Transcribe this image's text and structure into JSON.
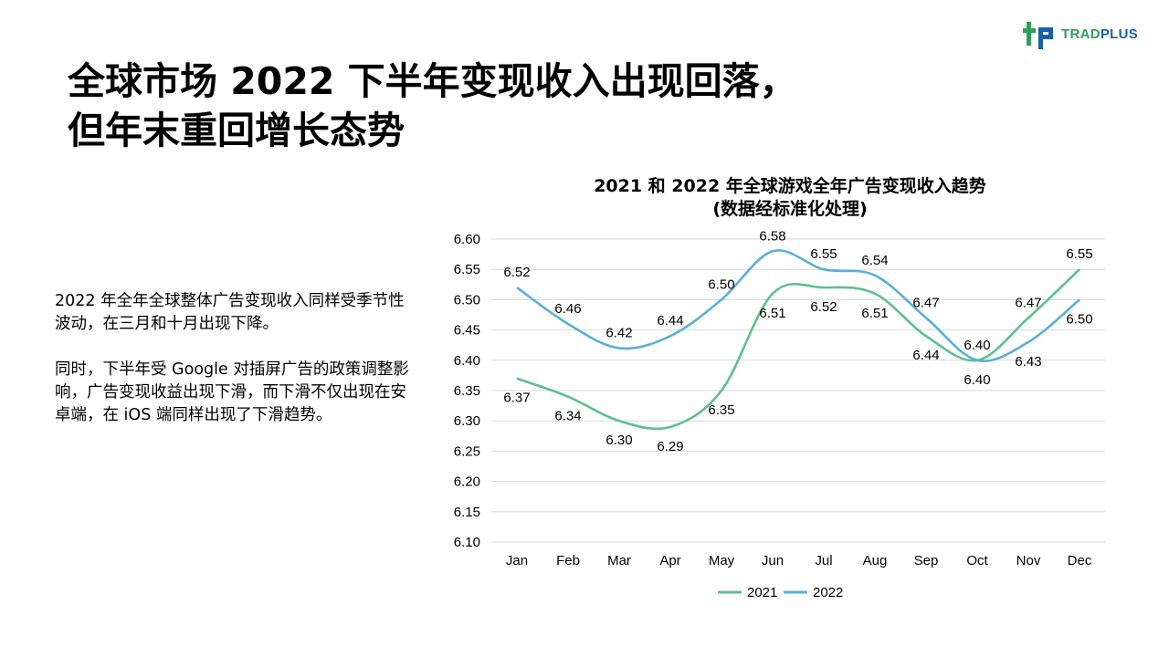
{
  "logo": {
    "text_part1": "TRAD",
    "text_part2": "PLUS"
  },
  "title": {
    "line1": "全球市场 2022 下半年变现收入出现回落，",
    "line2": "但年末重回增长态势"
  },
  "body": {
    "paragraph1": "2022 年全年全球整体广告变现收入同样受季节性波动，在三月和十月出现下降。",
    "paragraph2": "同时，下半年受 Google 对插屏广告的政策调整影响，广告变现收益出现下滑，而下滑不仅出现在安卓端，在 iOS 端同样出现了下滑趋势。"
  },
  "chart_data": {
    "type": "line",
    "title": "2021 和 2022 年全球游戏全年广告变现收入趋势",
    "subtitle": "(数据经标准化处理)",
    "categories": [
      "Jan",
      "Feb",
      "Mar",
      "Apr",
      "May",
      "Jun",
      "Jul",
      "Aug",
      "Sep",
      "Oct",
      "Nov",
      "Dec"
    ],
    "series": [
      {
        "name": "2021",
        "color": "#5cc08c",
        "values": [
          6.37,
          6.34,
          6.3,
          6.29,
          6.35,
          6.51,
          6.52,
          6.51,
          6.44,
          6.4,
          6.47,
          6.55
        ]
      },
      {
        "name": "2022",
        "color": "#5aafd6",
        "values": [
          6.52,
          6.46,
          6.42,
          6.44,
          6.5,
          6.58,
          6.55,
          6.54,
          6.47,
          6.4,
          6.43,
          6.5
        ]
      }
    ],
    "ylim": [
      6.1,
      6.6
    ],
    "yticks": [
      "6.10",
      "6.15",
      "6.20",
      "6.25",
      "6.30",
      "6.35",
      "6.40",
      "6.45",
      "6.50",
      "6.55",
      "6.60"
    ],
    "grid": true,
    "legend_position": "bottom"
  }
}
